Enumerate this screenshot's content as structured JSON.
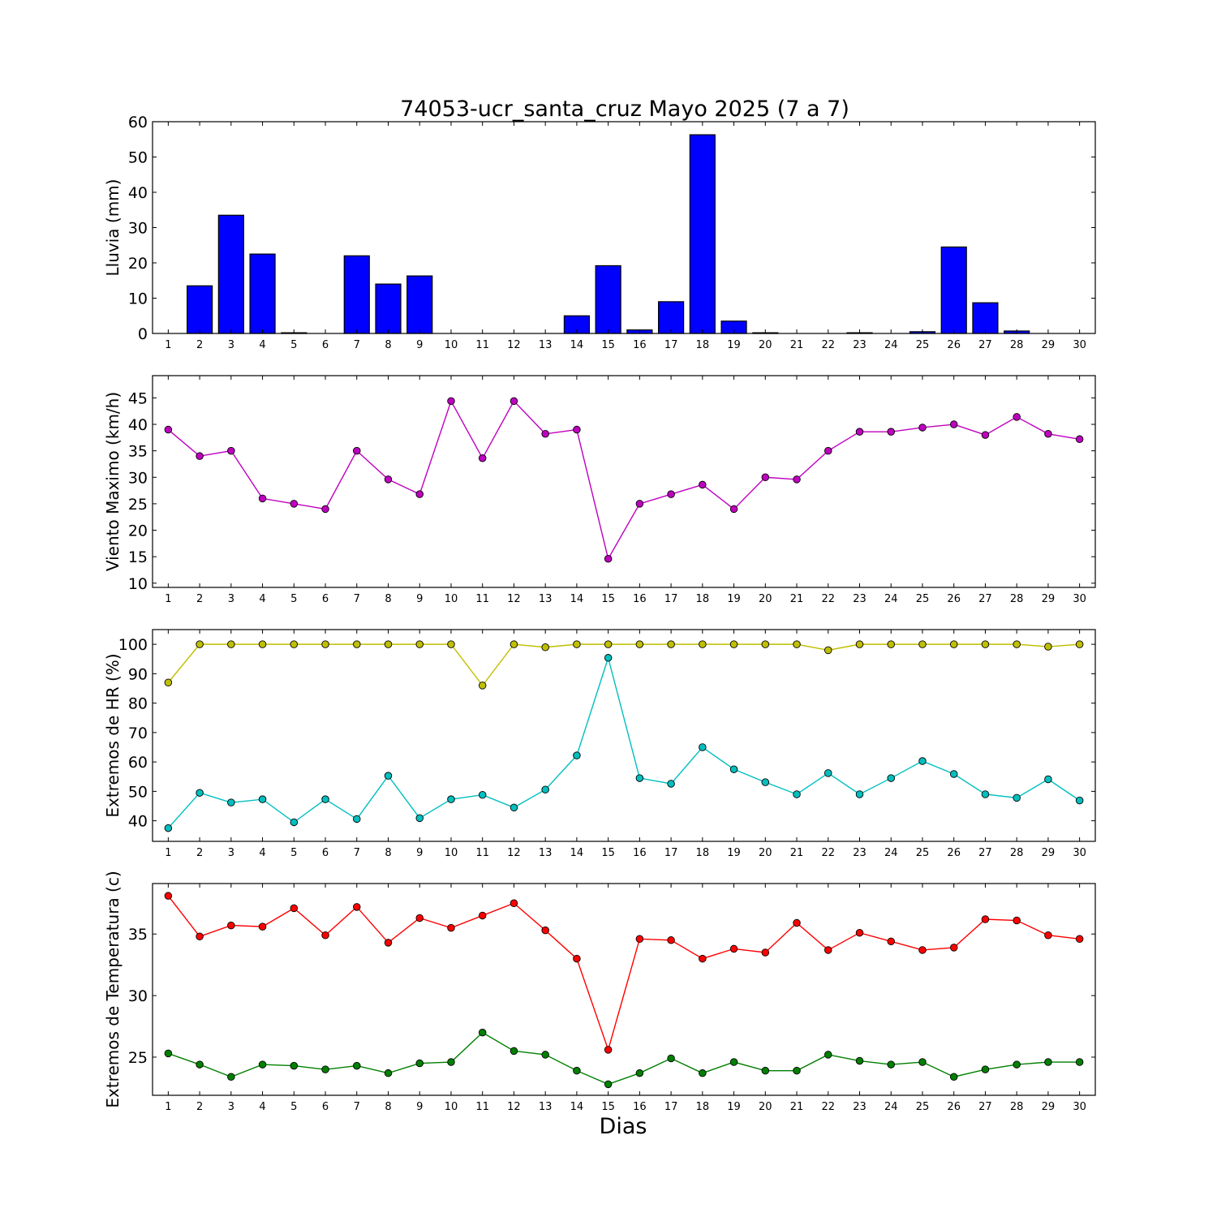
{
  "chart_data": {
    "title": "74053-ucr_santa_cruz Mayo 2025  (7 a 7)",
    "xlabel": "Dias",
    "days": [
      1,
      2,
      3,
      4,
      5,
      6,
      7,
      8,
      9,
      10,
      11,
      12,
      13,
      14,
      15,
      16,
      17,
      18,
      19,
      20,
      21,
      22,
      23,
      24,
      25,
      26,
      27,
      28,
      29,
      30
    ],
    "panels": [
      {
        "id": "lluvia",
        "type": "bar",
        "ylabel": "Lluvia (mm)",
        "ylim": [
          0,
          60
        ],
        "yticks": [
          0,
          10,
          20,
          30,
          40,
          50,
          60
        ],
        "series": [
          {
            "color": "#0000ff",
            "values": [
              0,
              13.5,
              33.5,
              22.5,
              0.2,
              0,
              22,
              14,
              16.3,
              0,
              0,
              0,
              0,
              5,
              19.2,
              1,
              9,
              56.3,
              3.5,
              0.2,
              0,
              0,
              0.2,
              0,
              0.5,
              24.5,
              8.7,
              0.7,
              0,
              0
            ]
          }
        ]
      },
      {
        "id": "viento",
        "type": "line",
        "ylabel": "Viento Maximo (km/h)",
        "ylim": [
          9.2,
          49.2
        ],
        "yticks": [
          10,
          15,
          20,
          25,
          30,
          35,
          40,
          45
        ],
        "series": [
          {
            "color": "#bf00bf",
            "values": [
              39,
              34,
              35,
              26,
              25,
              24,
              35,
              29.6,
              26.8,
              44.4,
              33.6,
              44.4,
              38.2,
              39,
              14.6,
              25,
              26.8,
              28.6,
              24,
              30,
              29.6,
              35,
              38.6,
              38.6,
              39.4,
              40,
              38,
              41.4,
              38.2,
              37.2
            ]
          }
        ]
      },
      {
        "id": "hr",
        "type": "line",
        "ylabel": "Extremos de HR (%)",
        "ylim": [
          33,
          105
        ],
        "yticks": [
          40,
          50,
          60,
          70,
          80,
          90,
          100
        ],
        "series": [
          {
            "color": "#bfbf00",
            "values": [
              87,
              100,
              100,
              100,
              100,
              100,
              100,
              100,
              100,
              100,
              86,
              100,
              99,
              100,
              100,
              100,
              100,
              100,
              100,
              100,
              100,
              98,
              100,
              100,
              100,
              100,
              100,
              100,
              99.2,
              100
            ]
          },
          {
            "color": "#00bfbf",
            "values": [
              37.5,
              49.5,
              46.2,
              47.3,
              39.5,
              47.3,
              40.6,
              55.3,
              40.9,
              47.3,
              48.8,
              44.5,
              50.6,
              62.2,
              95.4,
              54.5,
              52.6,
              65,
              57.5,
              53.1,
              49,
              56.2,
              49,
              54.5,
              60.3,
              55.9,
              49,
              47.8,
              54.1,
              46.9
            ]
          }
        ]
      },
      {
        "id": "temp",
        "type": "line",
        "ylabel": "Extremos de Temperatura (c)",
        "ylim": [
          21.9,
          39.1
        ],
        "yticks": [
          25,
          30,
          35
        ],
        "series": [
          {
            "color": "#ff0000",
            "values": [
              38.1,
              34.8,
              35.7,
              35.6,
              37.1,
              34.9,
              37.2,
              34.3,
              36.3,
              35.5,
              36.5,
              37.5,
              35.3,
              33,
              25.6,
              34.6,
              34.5,
              33,
              33.8,
              33.5,
              35.9,
              33.7,
              35.1,
              34.4,
              33.7,
              33.9,
              36.2,
              36.1,
              34.9,
              34.6
            ]
          },
          {
            "color": "#008000",
            "values": [
              25.3,
              24.4,
              23.4,
              24.4,
              24.3,
              24,
              24.3,
              23.7,
              24.5,
              24.6,
              27,
              25.5,
              25.2,
              23.9,
              22.8,
              23.7,
              24.9,
              23.7,
              24.6,
              23.9,
              23.9,
              25.2,
              24.7,
              24.4,
              24.6,
              23.4,
              24,
              24.4,
              24.6,
              24.6
            ]
          }
        ]
      }
    ]
  }
}
